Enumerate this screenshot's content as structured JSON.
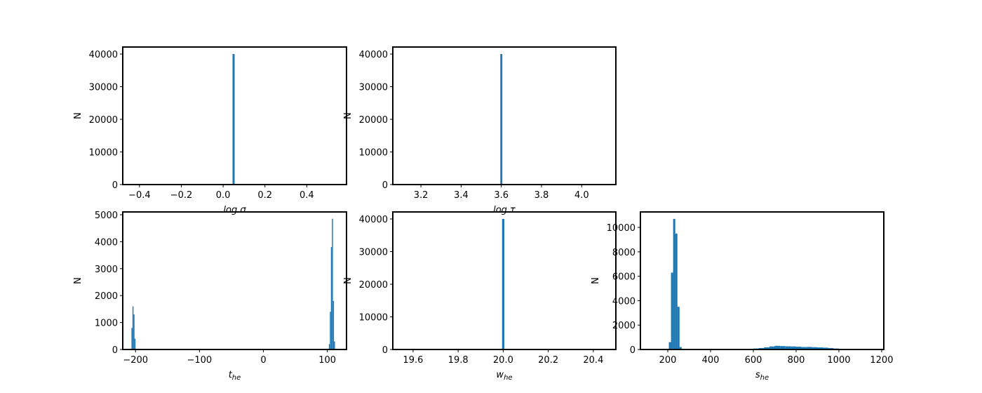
{
  "chart_data": [
    {
      "type": "histogram",
      "xlabel": "log σ",
      "ylabel": "N",
      "color": "#1f77b4",
      "bins": [
        0.045,
        0.055
      ],
      "counts": [
        40000
      ],
      "xlim": [
        -0.48,
        0.59
      ],
      "ylim": [
        0,
        42150
      ],
      "xticks": [
        {
          "value": -0.4,
          "label": "−0.4"
        },
        {
          "value": -0.2,
          "label": "−0.2"
        },
        {
          "value": 0,
          "label": "0.0"
        },
        0.2,
        0.4
      ],
      "yticks": [
        0,
        10000,
        20000,
        30000,
        40000
      ]
    },
    {
      "type": "histogram",
      "xlabel": "log τ",
      "ylabel": "N",
      "color": "#1f77b4",
      "bins": [
        3.595,
        3.605
      ],
      "counts": [
        40000
      ],
      "xlim": [
        3.06,
        4.17
      ],
      "ylim": [
        0,
        42150
      ],
      "xticks": [
        3.2,
        3.4,
        3.6,
        3.8,
        {
          "value": 4,
          "label": "4.0"
        }
      ],
      "yticks": [
        0,
        10000,
        20000,
        30000,
        40000
      ]
    },
    {
      "type": "histogram",
      "xlabel": "t",
      "xlabel_sub": "he",
      "ylabel": "N",
      "color": "#1f77b4",
      "bins": [
        -206.4,
        -204.8,
        -203.2,
        -201.6,
        -200,
        102.4,
        104,
        105.6,
        107.2,
        108.8,
        110.4,
        112
      ],
      "counts": [
        800,
        1600,
        1300,
        400,
        0,
        200,
        1400,
        3800,
        4850,
        1800,
        300
      ],
      "xlim": [
        -220,
        130
      ],
      "ylim": [
        0,
        5104
      ],
      "xticks": [
        {
          "value": -200,
          "label": "−200"
        },
        {
          "value": -100,
          "label": "−100"
        },
        0,
        100
      ],
      "yticks": [
        0,
        1000,
        2000,
        3000,
        4000,
        5000
      ]
    },
    {
      "type": "histogram",
      "xlabel": "w",
      "xlabel_sub": "he",
      "ylabel": "N",
      "color": "#1f77b4",
      "bins": [
        19.995,
        20.005
      ],
      "counts": [
        40000
      ],
      "xlim": [
        19.51,
        20.5
      ],
      "ylim": [
        0,
        42150
      ],
      "xticks": [
        19.6,
        19.8,
        {
          "value": 20,
          "label": "20.0"
        },
        20.2,
        20.4
      ],
      "yticks": [
        0,
        10000,
        20000,
        30000,
        40000
      ]
    },
    {
      "type": "histogram",
      "xlabel": "s",
      "xlabel_sub": "he",
      "ylabel": "N",
      "color": "#1f77b4",
      "bins": [
        205,
        215,
        225,
        235,
        245,
        255,
        265,
        500,
        525,
        550,
        575,
        600,
        625,
        650,
        675,
        700,
        725,
        750,
        775,
        800,
        825,
        850,
        875,
        900,
        925,
        950,
        975,
        1000,
        1025,
        1050
      ],
      "counts": [
        600,
        6300,
        10700,
        9500,
        3500,
        200,
        0,
        20,
        30,
        40,
        60,
        80,
        120,
        180,
        250,
        300,
        280,
        260,
        250,
        230,
        200,
        210,
        190,
        170,
        150,
        120,
        80,
        40,
        20
      ],
      "xlim": [
        72,
        1210
      ],
      "ylim": [
        0,
        11270
      ],
      "xticks": [
        200,
        400,
        600,
        800,
        1000,
        1200
      ],
      "yticks": [
        0,
        2000,
        4000,
        6000,
        8000,
        10000
      ]
    }
  ]
}
